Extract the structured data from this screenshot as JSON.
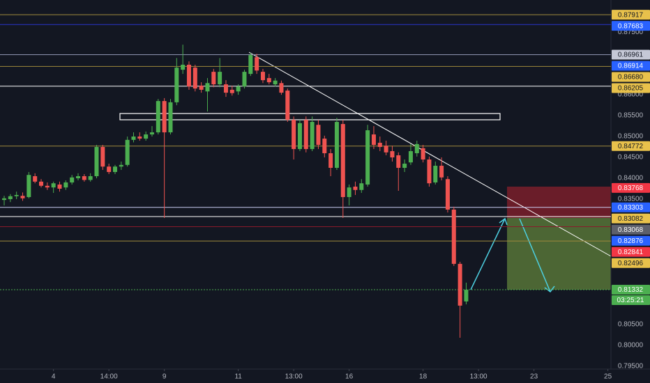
{
  "chart_data": {
    "type": "candlestick",
    "up_color": "#4caf50",
    "down_color": "#ef5350",
    "grid": false,
    "x": [
      0,
      1,
      2,
      3,
      4,
      5,
      6,
      7,
      8,
      9,
      10,
      11,
      12,
      13,
      14,
      15,
      16,
      17,
      18,
      19,
      20,
      21,
      22,
      23,
      24,
      25,
      26,
      27,
      28,
      29,
      30,
      31,
      32,
      33,
      34,
      35,
      36,
      37,
      38,
      39,
      40,
      41,
      42,
      43,
      44,
      45,
      46,
      47,
      48,
      49,
      50,
      51,
      52,
      53,
      54,
      55,
      56,
      57,
      58,
      59,
      60,
      61,
      62,
      63,
      64,
      65,
      66,
      67,
      68,
      69,
      70,
      71,
      72,
      73,
      74,
      75
    ],
    "open": [
      0.8348,
      0.835,
      0.8357,
      0.8358,
      0.8355,
      0.8405,
      0.8392,
      0.8382,
      0.8378,
      0.8385,
      0.8378,
      0.839,
      0.84,
      0.8405,
      0.8396,
      0.8405,
      0.8475,
      0.8428,
      0.8415,
      0.8428,
      0.8432,
      0.8492,
      0.85,
      0.8495,
      0.8505,
      0.851,
      0.8585,
      0.851,
      0.8582,
      0.866,
      0.8672,
      0.8665,
      0.8622,
      0.8608,
      0.8655,
      0.8625,
      0.8625,
      0.8612,
      0.8608,
      0.862,
      0.865,
      0.869,
      0.8655,
      0.864,
      0.8625,
      0.8628,
      0.861,
      0.854,
      0.847,
      0.854,
      0.847,
      0.8528,
      0.8495,
      0.846,
      0.8425,
      0.853,
      0.8355,
      0.838,
      0.8372,
      0.8385,
      0.8505,
      0.8485,
      0.8478,
      0.8465,
      0.8455,
      0.8425,
      0.8438,
      0.846,
      0.8472,
      0.8445,
      0.839,
      0.843,
      0.8398,
      0.8325,
      0.8195,
      0.8105
    ],
    "high": [
      0.8358,
      0.8362,
      0.8368,
      0.8366,
      0.8415,
      0.8412,
      0.8398,
      0.839,
      0.8392,
      0.8392,
      0.8395,
      0.8408,
      0.8412,
      0.841,
      0.8412,
      0.848,
      0.848,
      0.8435,
      0.8432,
      0.844,
      0.85,
      0.851,
      0.851,
      0.8512,
      0.8525,
      0.859,
      0.8592,
      0.859,
      0.8688,
      0.872,
      0.868,
      0.8672,
      0.863,
      0.864,
      0.8662,
      0.8688,
      0.8635,
      0.8622,
      0.8625,
      0.866,
      0.87,
      0.8698,
      0.8662,
      0.865,
      0.864,
      0.8634,
      0.8615,
      0.8548,
      0.854,
      0.8548,
      0.8548,
      0.854,
      0.8502,
      0.847,
      0.8545,
      0.854,
      0.8385,
      0.8392,
      0.8398,
      0.8528,
      0.8525,
      0.85,
      0.849,
      0.8478,
      0.8462,
      0.8445,
      0.8482,
      0.849,
      0.848,
      0.8452,
      0.844,
      0.845,
      0.8405,
      0.8332,
      0.82,
      0.815
    ],
    "low": [
      0.8335,
      0.8343,
      0.835,
      0.8346,
      0.8352,
      0.8388,
      0.8378,
      0.8372,
      0.8365,
      0.8368,
      0.8372,
      0.8385,
      0.8395,
      0.8392,
      0.8392,
      0.84,
      0.842,
      0.841,
      0.841,
      0.842,
      0.8428,
      0.8486,
      0.849,
      0.849,
      0.85,
      0.8505,
      0.8305,
      0.8505,
      0.8575,
      0.865,
      0.8612,
      0.8608,
      0.8605,
      0.856,
      0.8618,
      0.8618,
      0.8595,
      0.8598,
      0.86,
      0.8615,
      0.8645,
      0.865,
      0.8628,
      0.8625,
      0.862,
      0.86,
      0.8535,
      0.8445,
      0.8465,
      0.8462,
      0.8465,
      0.847,
      0.845,
      0.8405,
      0.842,
      0.8305,
      0.8335,
      0.836,
      0.8365,
      0.838,
      0.847,
      0.8465,
      0.8455,
      0.844,
      0.837,
      0.8415,
      0.8432,
      0.8452,
      0.8438,
      0.838,
      0.8385,
      0.8395,
      0.8318,
      0.819,
      0.8018,
      0.8098
    ],
    "close": [
      0.8352,
      0.8357,
      0.836,
      0.8352,
      0.8408,
      0.8392,
      0.8382,
      0.8378,
      0.8388,
      0.8375,
      0.839,
      0.8402,
      0.8405,
      0.8396,
      0.8405,
      0.8475,
      0.8428,
      0.8415,
      0.8428,
      0.8432,
      0.8492,
      0.85,
      0.8495,
      0.8505,
      0.851,
      0.8585,
      0.851,
      0.8582,
      0.8665,
      0.8672,
      0.862,
      0.8615,
      0.8612,
      0.8628,
      0.8625,
      0.8655,
      0.8605,
      0.8604,
      0.862,
      0.8655,
      0.8695,
      0.8658,
      0.8635,
      0.863,
      0.8634,
      0.8605,
      0.854,
      0.847,
      0.8532,
      0.847,
      0.8535,
      0.848,
      0.846,
      0.8425,
      0.8535,
      0.8355,
      0.8378,
      0.8372,
      0.8388,
      0.8515,
      0.848,
      0.8475,
      0.8462,
      0.845,
      0.8425,
      0.8435,
      0.8465,
      0.8482,
      0.8445,
      0.8388,
      0.843,
      0.8402,
      0.8325,
      0.8195,
      0.8095,
      0.8133
    ],
    "xlim": [
      -0.68,
      98.5
    ],
    "xticks": [
      {
        "value": 8,
        "label": "4"
      },
      {
        "value": 17,
        "label": "14:00"
      },
      {
        "value": 26,
        "label": "9"
      },
      {
        "value": 38,
        "label": "11"
      },
      {
        "value": 47,
        "label": "13:00"
      },
      {
        "value": 56,
        "label": "16"
      },
      {
        "value": 68,
        "label": "18"
      },
      {
        "value": 77,
        "label": "13:00"
      },
      {
        "value": 86,
        "label": "23"
      },
      {
        "value": 98,
        "label": "25"
      }
    ],
    "ylim": [
      0.7943,
      0.8827
    ],
    "yticks": [
      {
        "value": 0.875,
        "label": "0.87500"
      },
      {
        "value": 0.86,
        "label": "0.86000"
      },
      {
        "value": 0.855,
        "label": "0.85500"
      },
      {
        "value": 0.85,
        "label": "0.85000"
      },
      {
        "value": 0.845,
        "label": "0.84500"
      },
      {
        "value": 0.84,
        "label": "0.84000"
      },
      {
        "value": 0.835,
        "label": "0.83500"
      },
      {
        "value": 0.805,
        "label": "0.80500"
      },
      {
        "value": 0.8,
        "label": "0.80000"
      },
      {
        "value": 0.795,
        "label": "0.79500"
      }
    ],
    "levels": [
      {
        "value": 0.87917,
        "label": "0.87917",
        "bg": "#e8c14b",
        "fg": "#131722",
        "line": "#a08a3c"
      },
      {
        "value": 0.87683,
        "label": "0.87683",
        "bg": "#2962ff",
        "fg": "#ffffff",
        "line": "#2a35c9"
      },
      {
        "value": 0.86961,
        "label": "0.86961",
        "bg": "#c5c8d6",
        "fg": "#131722",
        "line": "#8f95b2"
      },
      {
        "value": 0.86914,
        "label": "0.86914",
        "bg": "#2962ff",
        "fg": "#ffffff"
      },
      {
        "value": 0.8668,
        "label": "0.86680",
        "bg": "#e8c14b",
        "fg": "#131722",
        "line": "#a08a3c"
      },
      {
        "value": 0.86205,
        "label": "0.86205",
        "bg": "#e8c14b",
        "fg": "#131722",
        "line": "#ffffff"
      },
      {
        "value": 0.84772,
        "label": "0.84772",
        "bg": "#e8c14b",
        "fg": "#131722",
        "line": "#a08a3c"
      },
      {
        "value": 0.83768,
        "label": "0.83768",
        "bg": "#f23645",
        "fg": "#ffffff"
      },
      {
        "value": 0.83303,
        "label": "0.83303",
        "bg": "#2962ff",
        "fg": "#ffffff",
        "line": "#c8ccf0"
      },
      {
        "value": 0.83082,
        "label": "0.83082",
        "bg": "#e8c14b",
        "fg": "#131722",
        "line": "#ffffff"
      },
      {
        "value": 0.83068,
        "label": "0.83068",
        "bg": "#5d606b",
        "fg": "#ffffff"
      },
      {
        "value": 0.82876,
        "label": "0.82876",
        "bg": "#2962ff",
        "fg": "#ffffff"
      },
      {
        "value": 0.82841,
        "label": "0.82841",
        "bg": "#f23645",
        "fg": "#ffffff",
        "line": "#8b1a2b"
      },
      {
        "value": 0.82496,
        "label": "0.82496",
        "bg": "#e8c14b",
        "fg": "#131722",
        "line": "#a08a3c"
      },
      {
        "value": 0.81332,
        "label": "0.81332",
        "bg": "#4caf50",
        "fg": "#ffffff",
        "line": "#4caf50",
        "dotted": true,
        "countdown": "03:25:21"
      }
    ]
  }
}
